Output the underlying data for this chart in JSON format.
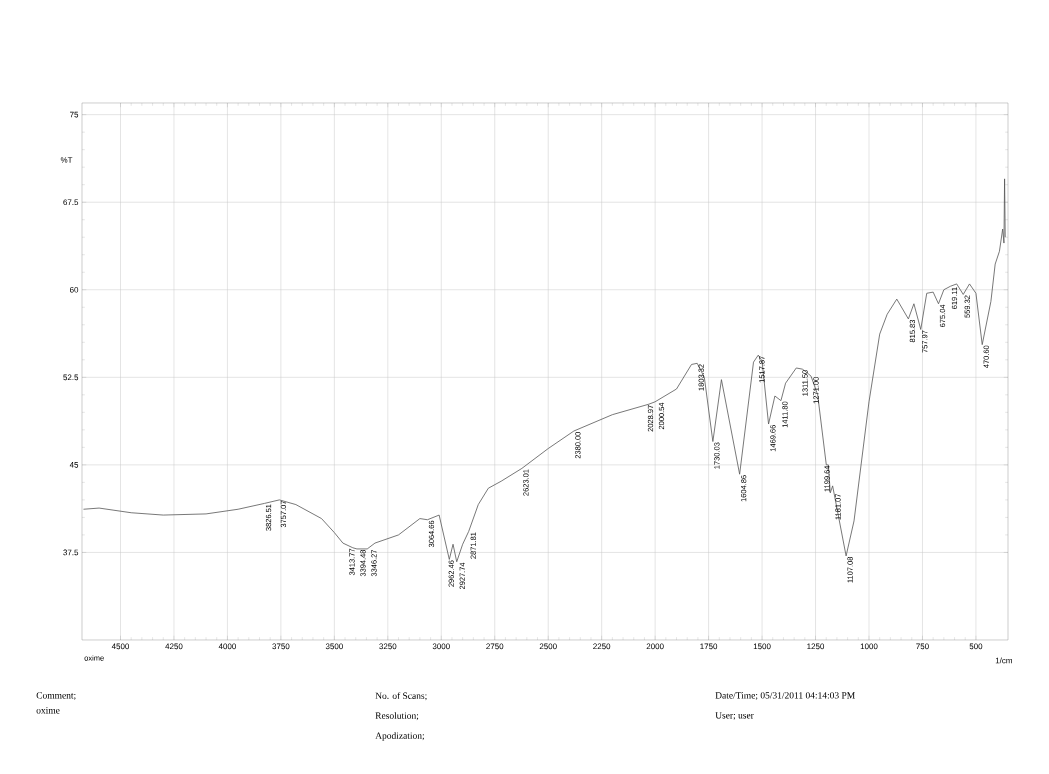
{
  "chart_data": {
    "type": "line",
    "xlabel": "1/cm",
    "ylabel": "%T",
    "xlim": [
      4680,
      350
    ],
    "ylim": [
      30,
      76
    ],
    "xticks": [
      4500,
      4250,
      4000,
      3750,
      3500,
      3250,
      3000,
      2750,
      2500,
      2250,
      2000,
      1750,
      1500,
      1250,
      1000,
      750,
      500
    ],
    "yticks": [
      37.5,
      45,
      52.5,
      60,
      67.5,
      75
    ],
    "grid": true,
    "marker": "none",
    "line_style": "solid",
    "series": [
      {
        "color": "#555555",
        "x": [
          4673,
          4600,
          4450,
          4300,
          4100,
          3950,
          3826.51,
          3757.07,
          3680,
          3560,
          3500,
          3460,
          3413.77,
          3394.48,
          3346.27,
          3310,
          3200,
          3100,
          3064.66,
          3010,
          2962.46,
          2945,
          2927.74,
          2900,
          2871.81,
          2827,
          2780,
          2720,
          2623.01,
          2500,
          2380.0,
          2200,
          2028.97,
          2000.54,
          1900,
          1830,
          1803.32,
          1770,
          1730.03,
          1690,
          1604.86,
          1540,
          1517.87,
          1500,
          1469.66,
          1440,
          1411.8,
          1390,
          1340,
          1311.5,
          1290,
          1271.0,
          1240,
          1199.64,
          1190,
          1181.07,
          1170,
          1107.08,
          1070,
          1000,
          950,
          915,
          870,
          815.83,
          790,
          757.97,
          730,
          700,
          675.04,
          650,
          619.11,
          590,
          559.32,
          530,
          500,
          470.6,
          430,
          410,
          390,
          375,
          369,
          366,
          363
        ],
        "values": [
          41.2,
          41.3,
          40.9,
          40.7,
          40.8,
          41.2,
          41.7,
          42.0,
          41.6,
          40.4,
          39.2,
          38.3,
          37.9,
          37.8,
          37.8,
          38.3,
          39.0,
          40.4,
          40.3,
          40.7,
          36.9,
          38.2,
          36.7,
          38.2,
          39.3,
          41.6,
          43.0,
          43.6,
          44.7,
          46.4,
          47.9,
          49.3,
          50.2,
          50.4,
          51.5,
          53.6,
          53.7,
          52.5,
          47.0,
          52.3,
          44.2,
          53.8,
          54.4,
          53.9,
          48.5,
          50.9,
          50.5,
          52.0,
          53.3,
          53.2,
          52.9,
          52.6,
          51.0,
          45.0,
          45.0,
          42.6,
          43.2,
          37.2,
          40.2,
          50.4,
          56.2,
          57.9,
          59.2,
          57.5,
          58.8,
          56.6,
          59.7,
          59.8,
          58.8,
          60.0,
          60.3,
          60.5,
          59.6,
          60.5,
          59.7,
          55.3,
          59.0,
          62.2,
          63.3,
          65.2,
          64.0,
          69.5,
          64.5
        ]
      }
    ],
    "annotations": [
      {
        "text": "3826.51",
        "x": 3826.51,
        "y": 41.7
      },
      {
        "text": "3757.07",
        "x": 3757.07,
        "y": 42.0
      },
      {
        "text": "3413.77",
        "x": 3413.77,
        "y": 37.9
      },
      {
        "text": "3394.48",
        "x": 3394.48,
        "y": 37.8
      },
      {
        "text": "3346.27",
        "x": 3346.27,
        "y": 37.8
      },
      {
        "text": "3064.66",
        "x": 3064.66,
        "y": 40.3
      },
      {
        "text": "2962.46",
        "x": 2962.46,
        "y": 36.9
      },
      {
        "text": "2927.74",
        "x": 2927.74,
        "y": 36.7
      },
      {
        "text": "2871.81",
        "x": 2871.81,
        "y": 39.3
      },
      {
        "text": "2623.01",
        "x": 2623.01,
        "y": 44.7
      },
      {
        "text": "2380.00",
        "x": 2380.0,
        "y": 47.9
      },
      {
        "text": "2028.97",
        "x": 2028.97,
        "y": 50.2
      },
      {
        "text": "2000.54",
        "x": 2000.54,
        "y": 50.4
      },
      {
        "text": "1803.32",
        "x": 1803.32,
        "y": 53.7
      },
      {
        "text": "1730.03",
        "x": 1730.03,
        "y": 47.0
      },
      {
        "text": "1604.86",
        "x": 1604.86,
        "y": 44.2
      },
      {
        "text": "1517.87",
        "x": 1517.87,
        "y": 54.4
      },
      {
        "text": "1469.66",
        "x": 1469.66,
        "y": 48.5
      },
      {
        "text": "1411.80",
        "x": 1411.8,
        "y": 50.5
      },
      {
        "text": "1311.50",
        "x": 1311.5,
        "y": 53.2
      },
      {
        "text": "1271.00",
        "x": 1271.0,
        "y": 52.6
      },
      {
        "text": "1199.64",
        "x": 1199.64,
        "y": 45.0
      },
      {
        "text": "1181.07",
        "x": 1181.07,
        "y": 42.6
      },
      {
        "text": "1107.08",
        "x": 1107.08,
        "y": 37.2
      },
      {
        "text": "815.83",
        "x": 815.83,
        "y": 57.5
      },
      {
        "text": "757.97",
        "x": 757.97,
        "y": 56.6
      },
      {
        "text": "675.04",
        "x": 675.04,
        "y": 58.8
      },
      {
        "text": "619.11",
        "x": 619.11,
        "y": 60.3
      },
      {
        "text": "559.32",
        "x": 559.32,
        "y": 59.6
      },
      {
        "text": "470.60",
        "x": 470.6,
        "y": 55.3
      },
      "oxime",
      "Comment;",
      "oxime",
      "No. of Scans;",
      "Resolution;",
      "Apodization;",
      "Date/Time; 05/31/2011 04:14:03 PM",
      "User; user"
    ]
  }
}
